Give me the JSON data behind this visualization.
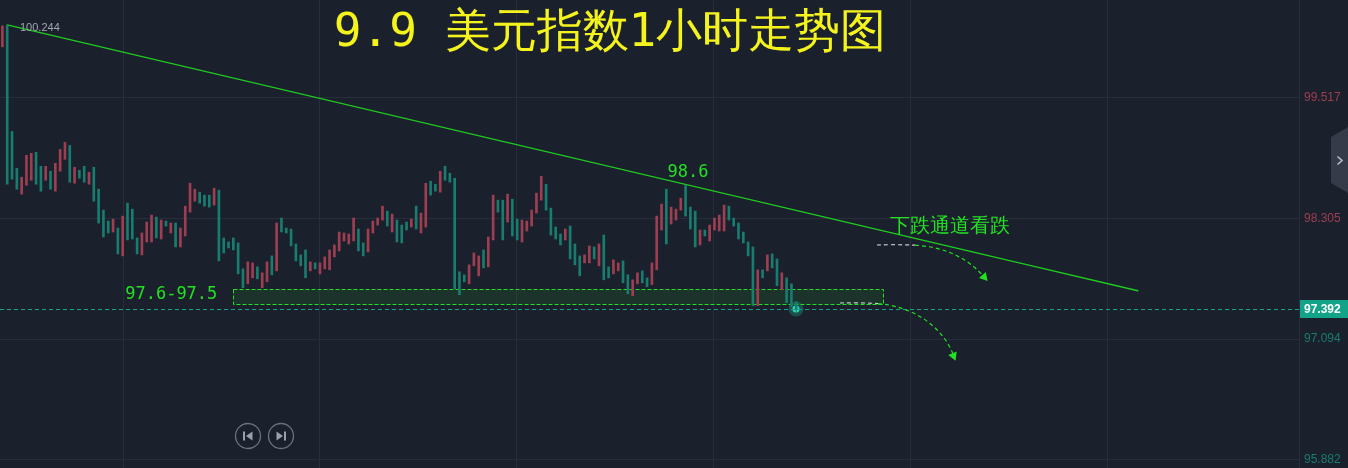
{
  "chart_data": {
    "type": "candlestick",
    "title": "9.9 美元指数1小时走势图",
    "categories": [
      null,
      null,
      null,
      null,
      null,
      null,
      null,
      null,
      null,
      null,
      null,
      null,
      null,
      null,
      null,
      null,
      null,
      null,
      null,
      null,
      null,
      null,
      null,
      null,
      null,
      null,
      null,
      null,
      null,
      null,
      null,
      null,
      null,
      null,
      null,
      null,
      null,
      null,
      null,
      null,
      null,
      null,
      null,
      null,
      null,
      null,
      null,
      null,
      null,
      null,
      null,
      null,
      null,
      null,
      null,
      null,
      null,
      null,
      null,
      null,
      null,
      null,
      null,
      null,
      null,
      null,
      null,
      null,
      null,
      null,
      null,
      null,
      null,
      null,
      null,
      null,
      null,
      null,
      null,
      null,
      null,
      null,
      null,
      null,
      null,
      null,
      null,
      null,
      null,
      null,
      null,
      null,
      null,
      null,
      null,
      null,
      null,
      null,
      null,
      null,
      null,
      null,
      null,
      null,
      null,
      null,
      null,
      null,
      null,
      null,
      null,
      null,
      null,
      null,
      null,
      null,
      null,
      null,
      null,
      null,
      null,
      null,
      null,
      null,
      null,
      null,
      null,
      null,
      null,
      null,
      null,
      null,
      null,
      null,
      null,
      null,
      null,
      null,
      null,
      null,
      null,
      null,
      null,
      null,
      null,
      null,
      null,
      null,
      null,
      null,
      null,
      null,
      null,
      null,
      null,
      null,
      null,
      null,
      null,
      null,
      null,
      null,
      null,
      null,
      null,
      null,
      null,
      null,
      null,
      null,
      null,
      null,
      null,
      null,
      null,
      null,
      null,
      null,
      null,
      null,
      null,
      null,
      null,
      null,
      null,
      null,
      null,
      null,
      null,
      null,
      null,
      null,
      null,
      null,
      null,
      null,
      null,
      null,
      null,
      null,
      null,
      null,
      null,
      null,
      null,
      null,
      null,
      null,
      null,
      null,
      null,
      null,
      null,
      null,
      null,
      null,
      null,
      null,
      null,
      null,
      null,
      null,
      null,
      null,
      null,
      null,
      null,
      null,
      null,
      null,
      null,
      null,
      null,
      null,
      null,
      null,
      null,
      null,
      null,
      null,
      null,
      null,
      null,
      null,
      null,
      null,
      null,
      null,
      null,
      null,
      null,
      null,
      null,
      null,
      null,
      null,
      null,
      null,
      null,
      null,
      null,
      null,
      null,
      null,
      null,
      null,
      null,
      null,
      null,
      null
    ],
    "ohlc": [
      [
        100.03,
        100.24,
        100.03,
        100.24
      ],
      [
        100.244,
        100.244,
        98.65,
        98.65
      ],
      [
        99.18,
        99.18,
        98.7,
        98.7
      ],
      [
        98.81,
        98.81,
        98.6,
        98.6
      ],
      [
        98.55,
        98.72,
        98.55,
        98.72
      ],
      [
        98.64,
        98.94,
        98.64,
        98.94
      ],
      [
        98.69,
        98.96,
        98.69,
        98.96
      ],
      [
        98.97,
        98.97,
        98.65,
        98.65
      ],
      [
        98.83,
        98.83,
        98.58,
        98.58
      ],
      [
        98.69,
        98.83,
        98.69,
        98.83
      ],
      [
        98.78,
        98.78,
        98.6,
        98.6
      ],
      [
        98.58,
        98.86,
        98.58,
        98.86
      ],
      [
        98.78,
        99,
        98.78,
        99
      ],
      [
        98.9,
        99.07,
        98.9,
        99.07
      ],
      [
        99.04,
        99.04,
        98.67,
        98.67
      ],
      [
        98.66,
        98.82,
        98.66,
        98.82
      ],
      [
        98.79,
        98.79,
        98.71,
        98.71
      ],
      [
        98.83,
        98.83,
        98.67,
        98.67
      ],
      [
        98.65,
        98.77,
        98.65,
        98.77
      ],
      [
        98.82,
        98.82,
        98.48,
        98.48
      ],
      [
        98.6,
        98.6,
        98.26,
        98.26
      ],
      [
        98.39,
        98.39,
        98.12,
        98.12
      ],
      [
        98.28,
        98.28,
        98.16,
        98.16
      ],
      [
        98.17,
        98.3,
        98.17,
        98.3
      ],
      [
        98.21,
        98.21,
        97.95,
        97.95
      ],
      [
        97.93,
        98.33,
        97.93,
        98.33
      ],
      [
        98.46,
        98.46,
        98.09,
        98.09
      ],
      [
        98.4,
        98.4,
        98.1,
        98.1
      ],
      [
        98.11,
        98.11,
        97.95,
        97.95
      ],
      [
        97.94,
        98.16,
        97.94,
        98.16
      ],
      [
        98.07,
        98.27,
        98.07,
        98.27
      ],
      [
        98.07,
        98.34,
        98.07,
        98.34
      ],
      [
        98.32,
        98.32,
        98.11,
        98.11
      ],
      [
        98.1,
        98.29,
        98.1,
        98.29
      ],
      [
        98.28,
        98.28,
        98.23,
        98.23
      ],
      [
        98.16,
        98.26,
        98.16,
        98.26
      ],
      [
        98.26,
        98.26,
        98.02,
        98.02
      ],
      [
        98.02,
        98.21,
        98.02,
        98.21
      ],
      [
        98.13,
        98.43,
        98.13,
        98.43
      ],
      [
        98.37,
        98.66,
        98.37,
        98.66
      ],
      [
        98.48,
        98.6,
        98.48,
        98.6
      ],
      [
        98.57,
        98.57,
        98.46,
        98.46
      ],
      [
        98.54,
        98.54,
        98.43,
        98.43
      ],
      [
        98.54,
        98.54,
        98.42,
        98.42
      ],
      [
        98.44,
        98.61,
        98.44,
        98.61
      ],
      [
        98.59,
        98.59,
        97.88,
        97.88
      ],
      [
        98.11,
        98.11,
        97.96,
        97.96
      ],
      [
        98.07,
        98.07,
        98.01,
        98.01
      ],
      [
        98.11,
        98.11,
        97.99,
        97.99
      ],
      [
        98.06,
        98.06,
        97.75,
        97.75
      ],
      [
        97.8,
        97.8,
        97.61,
        97.61
      ],
      [
        97.65,
        97.87,
        97.65,
        97.87
      ],
      [
        97.71,
        97.86,
        97.71,
        97.86
      ],
      [
        97.82,
        97.82,
        97.7,
        97.7
      ],
      [
        97.61,
        97.76,
        97.61,
        97.76
      ],
      [
        97.67,
        97.87,
        97.67,
        97.87
      ],
      [
        97.93,
        97.93,
        97.74,
        97.74
      ],
      [
        97.78,
        98.26,
        97.78,
        98.26
      ],
      [
        98.31,
        98.31,
        98.17,
        98.17
      ],
      [
        98.21,
        98.21,
        98.16,
        98.16
      ],
      [
        98.2,
        98.2,
        98.03,
        98.03
      ],
      [
        98.05,
        98.05,
        97.88,
        97.88
      ],
      [
        97.94,
        97.94,
        97.83,
        97.83
      ],
      [
        97.99,
        97.99,
        97.71,
        97.71
      ],
      [
        97.78,
        97.87,
        97.78,
        97.87
      ],
      [
        97.86,
        97.86,
        97.8,
        97.8
      ],
      [
        97.75,
        97.86,
        97.75,
        97.86
      ],
      [
        97.8,
        97.92,
        97.8,
        97.92
      ],
      [
        97.79,
        97.99,
        97.79,
        97.99
      ],
      [
        97.92,
        98.04,
        97.92,
        98.04
      ],
      [
        97.98,
        98.17,
        97.98,
        98.17
      ],
      [
        98.08,
        98.16,
        98.08,
        98.16
      ],
      [
        98.05,
        98.15,
        98.05,
        98.15
      ],
      [
        98.08,
        98.31,
        98.08,
        98.31
      ],
      [
        98.2,
        98.2,
        97.98,
        97.98
      ],
      [
        98.06,
        98.06,
        97.93,
        97.93
      ],
      [
        97.97,
        98.2,
        97.97,
        98.2
      ],
      [
        98.16,
        98.28,
        98.16,
        98.28
      ],
      [
        98.24,
        98.31,
        98.24,
        98.31
      ],
      [
        98.29,
        98.43,
        98.29,
        98.43
      ],
      [
        98.38,
        98.38,
        98.23,
        98.23
      ],
      [
        98.17,
        98.35,
        98.17,
        98.35
      ],
      [
        98.29,
        98.29,
        98.07,
        98.07
      ],
      [
        98.24,
        98.24,
        98.06,
        98.06
      ],
      [
        98.27,
        98.27,
        98.19,
        98.19
      ],
      [
        98.22,
        98.3,
        98.22,
        98.3
      ],
      [
        98.43,
        98.43,
        98.2,
        98.2
      ],
      [
        98.16,
        98.36,
        98.16,
        98.36
      ],
      [
        98.22,
        98.66,
        98.22,
        98.66
      ],
      [
        98.68,
        98.68,
        98.54,
        98.54
      ],
      [
        98.65,
        98.65,
        98.58,
        98.58
      ],
      [
        98.57,
        98.78,
        98.57,
        98.78
      ],
      [
        98.83,
        98.83,
        98.69,
        98.69
      ],
      [
        98.76,
        98.76,
        98.67,
        98.67
      ],
      [
        98.71,
        98.71,
        97.6,
        97.6
      ],
      [
        97.77,
        97.77,
        97.54,
        97.54
      ],
      [
        97.74,
        97.74,
        97.67,
        97.67
      ],
      [
        97.65,
        97.84,
        97.65,
        97.84
      ],
      [
        97.83,
        97.96,
        97.83,
        97.96
      ],
      [
        97.73,
        97.93,
        97.73,
        97.93
      ],
      [
        97.99,
        97.99,
        97.81,
        97.81
      ],
      [
        97.82,
        98.12,
        97.82,
        98.12
      ],
      [
        98.09,
        98.54,
        98.09,
        98.54
      ],
      [
        98.49,
        98.49,
        98.37,
        98.37
      ],
      [
        98.49,
        98.49,
        98.09,
        98.09
      ],
      [
        98.27,
        98.55,
        98.27,
        98.55
      ],
      [
        98.5,
        98.5,
        98.13,
        98.13
      ],
      [
        98.3,
        98.3,
        98.09,
        98.09
      ],
      [
        98.07,
        98.29,
        98.07,
        98.29
      ],
      [
        98.18,
        98.28,
        98.18,
        98.28
      ],
      [
        98.23,
        98.39,
        98.23,
        98.39
      ],
      [
        98.36,
        98.56,
        98.36,
        98.56
      ],
      [
        98.49,
        98.73,
        98.49,
        98.73
      ],
      [
        98.65,
        98.65,
        98.39,
        98.39
      ],
      [
        98.41,
        98.41,
        98.14,
        98.14
      ],
      [
        98.22,
        98.22,
        98.1,
        98.1
      ],
      [
        98.15,
        98.15,
        98.04,
        98.04
      ],
      [
        98.09,
        98.2,
        98.09,
        98.2
      ],
      [
        98.23,
        98.23,
        97.9,
        97.9
      ],
      [
        98.05,
        98.05,
        97.84,
        97.84
      ],
      [
        97.93,
        97.93,
        97.73,
        97.73
      ],
      [
        97.86,
        97.94,
        97.86,
        97.94
      ],
      [
        97.86,
        98.03,
        97.86,
        98.03
      ],
      [
        98.02,
        98.02,
        97.9,
        97.9
      ],
      [
        97.83,
        98.05,
        97.83,
        98.05
      ],
      [
        98.14,
        98.14,
        97.69,
        97.69
      ],
      [
        97.82,
        97.82,
        97.71,
        97.71
      ],
      [
        97.75,
        97.89,
        97.75,
        97.89
      ],
      [
        97.78,
        97.86,
        97.78,
        97.86
      ],
      [
        97.88,
        97.88,
        97.66,
        97.66
      ],
      [
        97.74,
        97.74,
        97.55,
        97.55
      ],
      [
        97.53,
        97.69,
        97.53,
        97.69
      ],
      [
        97.65,
        97.76,
        97.65,
        97.76
      ],
      [
        97.78,
        97.78,
        97.66,
        97.66
      ],
      [
        97.71,
        97.71,
        97.62,
        97.62
      ],
      [
        97.64,
        97.86,
        97.64,
        97.86
      ],
      [
        97.79,
        98.33,
        97.79,
        98.33
      ],
      [
        98.19,
        98.45,
        98.19,
        98.45
      ],
      [
        98.6,
        98.6,
        98.05,
        98.05
      ],
      [
        98.25,
        98.42,
        98.25,
        98.42
      ],
      [
        98.29,
        98.4,
        98.29,
        98.4
      ],
      [
        98.39,
        98.51,
        98.39,
        98.51
      ],
      [
        98.64,
        98.64,
        98.33,
        98.33
      ],
      [
        98.42,
        98.42,
        98.2,
        98.2
      ],
      [
        98.38,
        98.38,
        98.02,
        98.02
      ],
      [
        98.04,
        98.19,
        98.04,
        98.19
      ],
      [
        98.19,
        98.19,
        98.13,
        98.13
      ],
      [
        98.08,
        98.24,
        98.08,
        98.24
      ],
      [
        98.19,
        98.31,
        98.19,
        98.31
      ],
      [
        98.18,
        98.34,
        98.18,
        98.34
      ],
      [
        98.18,
        98.44,
        98.18,
        98.44
      ],
      [
        98.43,
        98.43,
        98.29,
        98.29
      ],
      [
        98.31,
        98.31,
        98.23,
        98.23
      ],
      [
        98.26,
        98.26,
        98.1,
        98.1
      ],
      [
        98.17,
        98.17,
        98.06,
        98.06
      ],
      [
        98.07,
        98.07,
        97.93,
        97.93
      ],
      [
        98.02,
        98.02,
        97.43,
        97.43
      ],
      [
        97.43,
        97.79,
        97.43,
        97.79
      ],
      [
        97.79,
        97.79,
        97.71,
        97.71
      ],
      [
        97.78,
        97.94,
        97.78,
        97.94
      ],
      [
        97.95,
        97.95,
        97.81,
        97.81
      ],
      [
        97.9,
        97.9,
        97.63,
        97.63
      ],
      [
        97.59,
        97.76,
        97.59,
        97.76
      ],
      [
        97.71,
        97.71,
        97.46,
        97.46
      ],
      [
        97.65,
        97.65,
        97.42,
        97.42
      ],
      [
        97.47,
        97.47,
        97.36,
        97.392
      ],
      null,
      null,
      null,
      null,
      null,
      null,
      null,
      null,
      null,
      null,
      null,
      null,
      null,
      null,
      null,
      null,
      null,
      null,
      null,
      null,
      null,
      null,
      null,
      null,
      null,
      null,
      null,
      null,
      null,
      null,
      null,
      null,
      null,
      null,
      null,
      null,
      null,
      null,
      null,
      null,
      null,
      null,
      null,
      null,
      null,
      null,
      null,
      null,
      null,
      null,
      null,
      null,
      null,
      null,
      null,
      null,
      null,
      null,
      null,
      null,
      null,
      null,
      null,
      null,
      null,
      null,
      null,
      null,
      null,
      null,
      null,
      null,
      null,
      null,
      null,
      null,
      null,
      null,
      null,
      null,
      null,
      null,
      null,
      null,
      null,
      null,
      null,
      null,
      null,
      null,
      null,
      null,
      null,
      null,
      null,
      null,
      null,
      null,
      null,
      null,
      null,
      null,
      null,
      null
    ],
    "colors": [
      "#9e3e51",
      "#187c6e",
      "#187c6e",
      "#187c6e",
      "#9e3e51",
      "#9e3e51",
      "#9e3e51",
      "#187c6e",
      "#187c6e",
      "#9e3e51",
      "#187c6e",
      "#9e3e51",
      "#9e3e51",
      "#9e3e51",
      "#187c6e",
      "#9e3e51",
      "#187c6e",
      "#187c6e",
      "#9e3e51",
      "#187c6e",
      "#187c6e",
      "#187c6e",
      "#187c6e",
      "#9e3e51",
      "#187c6e",
      "#9e3e51",
      "#187c6e",
      "#187c6e",
      "#187c6e",
      "#9e3e51",
      "#9e3e51",
      "#9e3e51",
      "#187c6e",
      "#9e3e51",
      "#187c6e",
      "#9e3e51",
      "#187c6e",
      "#9e3e51",
      "#9e3e51",
      "#9e3e51",
      "#9e3e51",
      "#187c6e",
      "#187c6e",
      "#187c6e",
      "#9e3e51",
      "#187c6e",
      "#187c6e",
      "#187c6e",
      "#187c6e",
      "#187c6e",
      "#187c6e",
      "#9e3e51",
      "#9e3e51",
      "#187c6e",
      "#9e3e51",
      "#9e3e51",
      "#187c6e",
      "#9e3e51",
      "#187c6e",
      "#187c6e",
      "#187c6e",
      "#187c6e",
      "#187c6e",
      "#187c6e",
      "#9e3e51",
      "#187c6e",
      "#9e3e51",
      "#9e3e51",
      "#9e3e51",
      "#9e3e51",
      "#9e3e51",
      "#9e3e51",
      "#9e3e51",
      "#9e3e51",
      "#187c6e",
      "#187c6e",
      "#9e3e51",
      "#9e3e51",
      "#9e3e51",
      "#9e3e51",
      "#187c6e",
      "#9e3e51",
      "#187c6e",
      "#187c6e",
      "#187c6e",
      "#9e3e51",
      "#187c6e",
      "#9e3e51",
      "#9e3e51",
      "#187c6e",
      "#187c6e",
      "#9e3e51",
      "#187c6e",
      "#187c6e",
      "#187c6e",
      "#187c6e",
      "#187c6e",
      "#9e3e51",
      "#9e3e51",
      "#9e3e51",
      "#187c6e",
      "#9e3e51",
      "#9e3e51",
      "#187c6e",
      "#187c6e",
      "#9e3e51",
      "#187c6e",
      "#187c6e",
      "#9e3e51",
      "#9e3e51",
      "#9e3e51",
      "#9e3e51",
      "#9e3e51",
      "#187c6e",
      "#187c6e",
      "#187c6e",
      "#187c6e",
      "#9e3e51",
      "#187c6e",
      "#187c6e",
      "#187c6e",
      "#9e3e51",
      "#9e3e51",
      "#187c6e",
      "#9e3e51",
      "#187c6e",
      "#187c6e",
      "#9e3e51",
      "#9e3e51",
      "#187c6e",
      "#187c6e",
      "#9e3e51",
      "#9e3e51",
      "#187c6e",
      "#187c6e",
      "#9e3e51",
      "#9e3e51",
      "#9e3e51",
      "#187c6e",
      "#9e3e51",
      "#9e3e51",
      "#9e3e51",
      "#187c6e",
      "#187c6e",
      "#187c6e",
      "#9e3e51",
      "#187c6e",
      "#9e3e51",
      "#9e3e51",
      "#9e3e51",
      "#9e3e51",
      "#187c6e",
      "#187c6e",
      "#187c6e",
      "#187c6e",
      "#187c6e",
      "#187c6e",
      "#9e3e51",
      "#187c6e",
      "#9e3e51",
      "#187c6e",
      "#187c6e",
      "#9e3e51",
      "#187c6e",
      "#187c6e",
      "#187c6e",
      null,
      null,
      null,
      null,
      null,
      null,
      null,
      null,
      null,
      null,
      null,
      null,
      null,
      null,
      null,
      null,
      null,
      null,
      null,
      null,
      null,
      null,
      null,
      null,
      null,
      null,
      null,
      null,
      null,
      null,
      null,
      null,
      null,
      null,
      null,
      null,
      null,
      null,
      null,
      null,
      null,
      null,
      null,
      null,
      null,
      null,
      null,
      null,
      null,
      null,
      null,
      null,
      null,
      null,
      null,
      null,
      null,
      null,
      null,
      null,
      null,
      null,
      null,
      null,
      null,
      null,
      null,
      null,
      null,
      null,
      null,
      null,
      null,
      null,
      null,
      null,
      null,
      null,
      null,
      null,
      null,
      null,
      null,
      null,
      null,
      null,
      null,
      null,
      null,
      null,
      null,
      null,
      null,
      null,
      null,
      null,
      null,
      null,
      null,
      null,
      null,
      null,
      null,
      null
    ],
    "series": [
      {
        "type": "line",
        "color": "#1fcf1f",
        "line_style": "solid",
        "values": [
          null,
          100.25,
          null,
          null,
          null,
          null,
          null,
          null,
          null,
          null,
          null,
          null,
          null,
          null,
          null,
          null,
          null,
          null,
          null,
          null,
          null,
          null,
          null,
          null,
          null,
          null,
          null,
          null,
          null,
          null,
          null,
          null,
          null,
          null,
          null,
          null,
          null,
          null,
          null,
          null,
          null,
          null,
          null,
          null,
          null,
          null,
          null,
          null,
          null,
          null,
          null,
          null,
          null,
          null,
          null,
          null,
          null,
          null,
          null,
          null,
          null,
          null,
          null,
          null,
          null,
          null,
          null,
          null,
          null,
          null,
          null,
          null,
          null,
          null,
          null,
          null,
          null,
          null,
          null,
          null,
          null,
          null,
          null,
          null,
          null,
          null,
          null,
          null,
          null,
          null,
          null,
          null,
          null,
          null,
          null,
          null,
          null,
          null,
          null,
          null,
          null,
          null,
          null,
          null,
          null,
          null,
          null,
          null,
          null,
          null,
          null,
          null,
          null,
          null,
          null,
          null,
          null,
          null,
          null,
          null,
          null,
          null,
          null,
          null,
          null,
          null,
          null,
          null,
          null,
          null,
          null,
          null,
          null,
          null,
          null,
          null,
          null,
          null,
          null,
          null,
          null,
          null,
          null,
          null,
          null,
          null,
          null,
          null,
          null,
          null,
          null,
          null,
          null,
          null,
          null,
          null,
          null,
          null,
          null,
          null,
          null,
          null,
          null,
          null,
          null,
          null,
          null,
          null,
          null,
          null,
          null,
          null,
          null,
          null,
          null,
          null,
          null,
          null,
          null,
          null,
          null,
          null,
          null,
          null,
          null,
          null,
          null,
          null,
          null,
          null,
          null,
          null,
          null,
          null,
          null,
          null,
          null,
          null,
          null,
          null,
          null,
          null,
          null,
          null,
          null,
          null,
          null,
          null,
          null,
          null,
          null,
          null,
          null,
          null,
          null,
          null,
          null,
          null,
          null,
          null,
          null,
          null,
          null,
          null,
          null,
          null,
          null,
          null,
          null,
          null,
          null,
          null,
          null,
          null,
          null,
          null,
          97.58,
          null,
          null,
          null,
          null,
          null,
          null,
          null,
          null,
          null,
          null,
          null,
          null,
          null,
          null,
          null,
          null,
          null,
          null,
          null,
          null,
          null,
          null,
          null,
          null,
          null,
          null,
          null,
          null,
          null,
          null,
          null,
          null,
          null
        ]
      }
    ],
    "ylim": [
      95.8,
      100.5
    ],
    "yticks": [
      95.882,
      97.094,
      98.305,
      99.517
    ],
    "grid": true,
    "tick_labels": "y",
    "marker": "none",
    "ref_lines": [
      {
        "axis": "y",
        "value": 97.392,
        "label": "97.392",
        "color": "#13a389",
        "line_style": "dashed"
      }
    ],
    "bands": [
      {
        "axis": "y",
        "from": 97.45,
        "to": 97.6,
        "label": "97.6-97.5",
        "color": "#22e022"
      }
    ],
    "annotations": [
      "100.244",
      "98.6",
      "下跌通道看跌"
    ]
  }
}
